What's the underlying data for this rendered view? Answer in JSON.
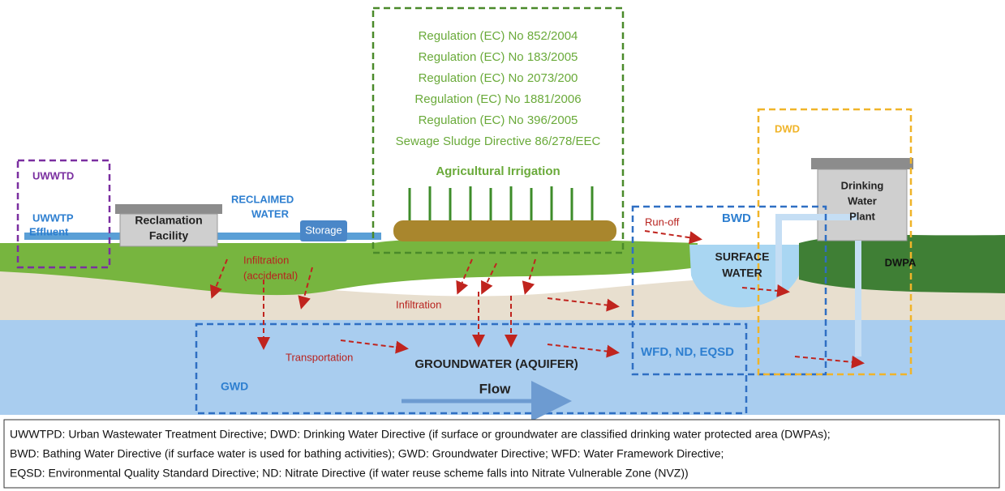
{
  "regulations": [
    "Regulation (EC) No 852/2004",
    "Regulation (EC) No 183/2005",
    "Regulation (EC) No 2073/200",
    "Regulation (EC) No 1881/2006",
    "Regulation (EC) No 396/2005",
    "Sewage Sludge Directive 86/278/EEC"
  ],
  "labels": {
    "agricultural_irrigation": "Agricultural Irrigation",
    "uwwtd": "UWWTD",
    "uwwtp_effluent": [
      "UWWTP",
      "Effluent"
    ],
    "reclamation_facility": [
      "Reclamation",
      "Facility"
    ],
    "reclaimed_water": [
      "RECLAIMED",
      "WATER"
    ],
    "storage": "Storage",
    "infiltration_accidental": [
      "Infiltration",
      "(accidental)"
    ],
    "infiltration": "Infiltration",
    "run_off": "Run-off",
    "bwd": "BWD",
    "surface_water": [
      "SURFACE",
      "WATER"
    ],
    "dwd": "DWD",
    "drinking_water_plant": [
      "Drinking",
      "Water",
      "Plant"
    ],
    "dwpa": "DWPA",
    "wfd_nd_eqsd": "WFD, ND, EQSD",
    "transportation": "Transportation",
    "groundwater": "GROUNDWATER (AQUIFER)",
    "flow": "Flow",
    "gwd": "GWD"
  },
  "legend": [
    "UWWTPD: Urban Wastewater Treatment Directive; DWD: Drinking Water Directive (if surface or groundwater are classified drinking water protected area (DWPAs);",
    "BWD: Bathing Water Directive (if surface water is used for bathing activities); GWD: Groundwater Directive; WFD: Water Framework Directive;",
    "EQSD: Environmental Quality Standard Directive; ND: Nitrate Directive (if water reuse scheme falls into Nitrate Vulnerable Zone (NVZ))"
  ]
}
